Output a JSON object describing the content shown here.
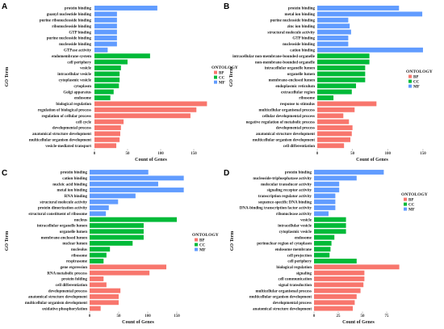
{
  "chart_data": [
    {
      "panel": "A",
      "type": "bar",
      "orientation": "horizontal",
      "xlabel": "Count of Genes",
      "ylabel": "GO Term",
      "xticks": [
        0,
        50,
        100,
        150
      ],
      "xlim": [
        0,
        174
      ],
      "grid": false,
      "legend": {
        "title": "ONTOLOGY",
        "placement": "right",
        "entries": [
          {
            "name": "BP",
            "color": "#F8766D"
          },
          {
            "name": "CC",
            "color": "#00BA38"
          },
          {
            "name": "MF",
            "color": "#619CFF"
          }
        ]
      },
      "bars": [
        {
          "term": "protein binding",
          "ontology": "MF",
          "count": 95
        },
        {
          "term": "guanyl nucleotide binding",
          "ontology": "MF",
          "count": 34
        },
        {
          "term": "purine ribonucleoside binding",
          "ontology": "MF",
          "count": 34
        },
        {
          "term": "ribonucleoside binding",
          "ontology": "MF",
          "count": 34
        },
        {
          "term": "GTP binding",
          "ontology": "MF",
          "count": 34
        },
        {
          "term": "purine nucleoside binding",
          "ontology": "MF",
          "count": 34
        },
        {
          "term": "nucleoside binding",
          "ontology": "MF",
          "count": 34
        },
        {
          "term": "GTPase activity",
          "ontology": "MF",
          "count": 20
        },
        {
          "term": "endomembrane system",
          "ontology": "CC",
          "count": 84
        },
        {
          "term": "cell periphery",
          "ontology": "CC",
          "count": 50
        },
        {
          "term": "vesicle",
          "ontology": "CC",
          "count": 40
        },
        {
          "term": "intracellular vesicle",
          "ontology": "CC",
          "count": 38
        },
        {
          "term": "cytoplasmic vesicle",
          "ontology": "CC",
          "count": 38
        },
        {
          "term": "cytoplasm",
          "ontology": "CC",
          "count": 37
        },
        {
          "term": "Golgi apparatus",
          "ontology": "CC",
          "count": 29
        },
        {
          "term": "endosome",
          "ontology": "CC",
          "count": 24
        },
        {
          "term": "biological regulation",
          "ontology": "BP",
          "count": 170
        },
        {
          "term": "regulation of biological process",
          "ontology": "BP",
          "count": 154
        },
        {
          "term": "regulation of cellular process",
          "ontology": "BP",
          "count": 145
        },
        {
          "term": "cell cycle",
          "ontology": "BP",
          "count": 44
        },
        {
          "term": "developmental process",
          "ontology": "BP",
          "count": 40
        },
        {
          "term": "anatomical structure development",
          "ontology": "BP",
          "count": 39
        },
        {
          "term": "multicellular organism development",
          "ontology": "BP",
          "count": 38
        },
        {
          "term": "vesicle-mediated transport",
          "ontology": "BP",
          "count": 33
        }
      ]
    },
    {
      "panel": "B",
      "type": "bar",
      "orientation": "horizontal",
      "xlabel": "Count of Genes",
      "ylabel": "GO Term",
      "xticks": [
        0,
        50,
        100,
        150
      ],
      "xlim": [
        0,
        158
      ],
      "grid": false,
      "legend": {
        "title": "ONTOLOGY",
        "placement": "right",
        "entries": [
          {
            "name": "BP",
            "color": "#F8766D"
          },
          {
            "name": "CC",
            "color": "#00BA38"
          },
          {
            "name": "MF",
            "color": "#619CFF"
          }
        ]
      },
      "bars": [
        {
          "term": "protein binding",
          "ontology": "MF",
          "count": 116
        },
        {
          "term": "metal ion binding",
          "ontology": "MF",
          "count": 149
        },
        {
          "term": "purine nucleoside binding",
          "ontology": "MF",
          "count": 44
        },
        {
          "term": "zinc ion binding",
          "ontology": "MF",
          "count": 46
        },
        {
          "term": "structural molecule activity",
          "ontology": "MF",
          "count": 48
        },
        {
          "term": "GTP binding",
          "ontology": "MF",
          "count": 44
        },
        {
          "term": "nucleoside binding",
          "ontology": "MF",
          "count": 44
        },
        {
          "term": "cation binding",
          "ontology": "MF",
          "count": 150
        },
        {
          "term": "intracellular non-membrane-bounded organelle",
          "ontology": "CC",
          "count": 74
        },
        {
          "term": "non-membrane-bounded organelle",
          "ontology": "CC",
          "count": 74
        },
        {
          "term": "intracellular organelle lumen",
          "ontology": "CC",
          "count": 68
        },
        {
          "term": "organelle lumen",
          "ontology": "CC",
          "count": 68
        },
        {
          "term": "membrane-enclosed lumen",
          "ontology": "CC",
          "count": 68
        },
        {
          "term": "endoplasmic reticulum",
          "ontology": "CC",
          "count": 55
        },
        {
          "term": "extracellular region",
          "ontology": "CC",
          "count": 49
        },
        {
          "term": "ribosome",
          "ontology": "CC",
          "count": 23
        },
        {
          "term": "response to stimulus",
          "ontology": "BP",
          "count": 84
        },
        {
          "term": "multicellular organismal process",
          "ontology": "BP",
          "count": 53
        },
        {
          "term": "cellular developmental process",
          "ontology": "BP",
          "count": 37
        },
        {
          "term": "negative regulation of metabolic process",
          "ontology": "BP",
          "count": 45
        },
        {
          "term": "developmental process",
          "ontology": "BP",
          "count": 50
        },
        {
          "term": "anatomical structure development",
          "ontology": "BP",
          "count": 49
        },
        {
          "term": "multicellular organism development",
          "ontology": "BP",
          "count": 47
        },
        {
          "term": "cell differentiation",
          "ontology": "BP",
          "count": 38
        }
      ]
    },
    {
      "panel": "C",
      "type": "bar",
      "orientation": "horizontal",
      "xlabel": "Count of Genes",
      "ylabel": "GO Term",
      "xticks": [
        0,
        50,
        100,
        150
      ],
      "xlim": [
        0,
        169
      ],
      "grid": false,
      "legend": {
        "title": "ONTOLOGY",
        "placement": "right",
        "entries": [
          {
            "name": "BP",
            "color": "#F8766D"
          },
          {
            "name": "CC",
            "color": "#00BA38"
          },
          {
            "name": "MF",
            "color": "#619CFF"
          }
        ]
      },
      "bars": [
        {
          "term": "protein binding",
          "ontology": "MF",
          "count": 101
        },
        {
          "term": "cation binding",
          "ontology": "MF",
          "count": 162
        },
        {
          "term": "nucleic acid binding",
          "ontology": "MF",
          "count": 118
        },
        {
          "term": "metal ion binding",
          "ontology": "MF",
          "count": 162
        },
        {
          "term": "RNA binding",
          "ontology": "MF",
          "count": 79
        },
        {
          "term": "structural molecule activity",
          "ontology": "MF",
          "count": 49
        },
        {
          "term": "protein dimerization activity",
          "ontology": "MF",
          "count": 33
        },
        {
          "term": "structural constituent of ribosome",
          "ontology": "MF",
          "count": 28
        },
        {
          "term": "nucleus",
          "ontology": "CC",
          "count": 150
        },
        {
          "term": "intracellular organelle lumen",
          "ontology": "CC",
          "count": 93
        },
        {
          "term": "organelle lumen",
          "ontology": "CC",
          "count": 93
        },
        {
          "term": "membrane-enclosed lumen",
          "ontology": "CC",
          "count": 93
        },
        {
          "term": "nuclear lumen",
          "ontology": "CC",
          "count": 74
        },
        {
          "term": "nucleolus",
          "ontology": "CC",
          "count": 35
        },
        {
          "term": "ribosome",
          "ontology": "CC",
          "count": 29
        },
        {
          "term": "respirasome",
          "ontology": "CC",
          "count": 24
        },
        {
          "term": "gene expression",
          "ontology": "BP",
          "count": 132
        },
        {
          "term": "RNA metabolic process",
          "ontology": "BP",
          "count": 103
        },
        {
          "term": "protein folding",
          "ontology": "BP",
          "count": 24
        },
        {
          "term": "cell differentiation",
          "ontology": "BP",
          "count": 29
        },
        {
          "term": "developmental process",
          "ontology": "BP",
          "count": 53
        },
        {
          "term": "anatomical structure development",
          "ontology": "BP",
          "count": 50
        },
        {
          "term": "multicellular organism development",
          "ontology": "BP",
          "count": 50
        },
        {
          "term": "oxidative phosphorylation",
          "ontology": "BP",
          "count": 19
        }
      ]
    },
    {
      "panel": "D",
      "type": "bar",
      "orientation": "horizontal",
      "xlabel": "Count of Genes",
      "ylabel": "GO Term",
      "xticks": [
        0,
        25,
        50,
        75
      ],
      "xlim": [
        0,
        92
      ],
      "grid": false,
      "legend": {
        "title": "ONTOLOGY",
        "placement": "right",
        "entries": [
          {
            "name": "BP",
            "color": "#F8766D"
          },
          {
            "name": "CC",
            "color": "#00BA38"
          },
          {
            "name": "MF",
            "color": "#619CFF"
          }
        ]
      },
      "bars": [
        {
          "term": "protein binding",
          "ontology": "MF",
          "count": 72
        },
        {
          "term": "nucleoside-triphosphatase activity",
          "ontology": "MF",
          "count": 44
        },
        {
          "term": "molecular transducer activity",
          "ontology": "MF",
          "count": 26
        },
        {
          "term": "signaling receptor activity",
          "ontology": "MF",
          "count": 26
        },
        {
          "term": "transcription regulator activity",
          "ontology": "MF",
          "count": 22
        },
        {
          "term": "sequence-specific DNA binding",
          "ontology": "MF",
          "count": 22
        },
        {
          "term": "DNA-binding transcription factor activity",
          "ontology": "MF",
          "count": 22
        },
        {
          "term": "ribonuclease activity",
          "ontology": "MF",
          "count": 15
        },
        {
          "term": "vesicle",
          "ontology": "CC",
          "count": 33
        },
        {
          "term": "intracellular vesicle",
          "ontology": "CC",
          "count": 33
        },
        {
          "term": "cytoplasmic vesicle",
          "ontology": "CC",
          "count": 33
        },
        {
          "term": "endosome",
          "ontology": "CC",
          "count": 21
        },
        {
          "term": "perinuclear region of cytoplasm",
          "ontology": "CC",
          "count": 18
        },
        {
          "term": "endosome membrane",
          "ontology": "CC",
          "count": 17
        },
        {
          "term": "cell projection",
          "ontology": "CC",
          "count": 16
        },
        {
          "term": "cell periphery",
          "ontology": "CC",
          "count": 44
        },
        {
          "term": "biological regulation",
          "ontology": "BP",
          "count": 88
        },
        {
          "term": "signaling",
          "ontology": "BP",
          "count": 52
        },
        {
          "term": "cell communication",
          "ontology": "BP",
          "count": 52
        },
        {
          "term": "signal transduction",
          "ontology": "BP",
          "count": 51
        },
        {
          "term": "multicellular organismal process",
          "ontology": "BP",
          "count": 48
        },
        {
          "term": "multicellular organism development",
          "ontology": "BP",
          "count": 44
        },
        {
          "term": "developmental process",
          "ontology": "BP",
          "count": 42
        },
        {
          "term": "anatomical structure development",
          "ontology": "BP",
          "count": 40
        }
      ]
    }
  ]
}
